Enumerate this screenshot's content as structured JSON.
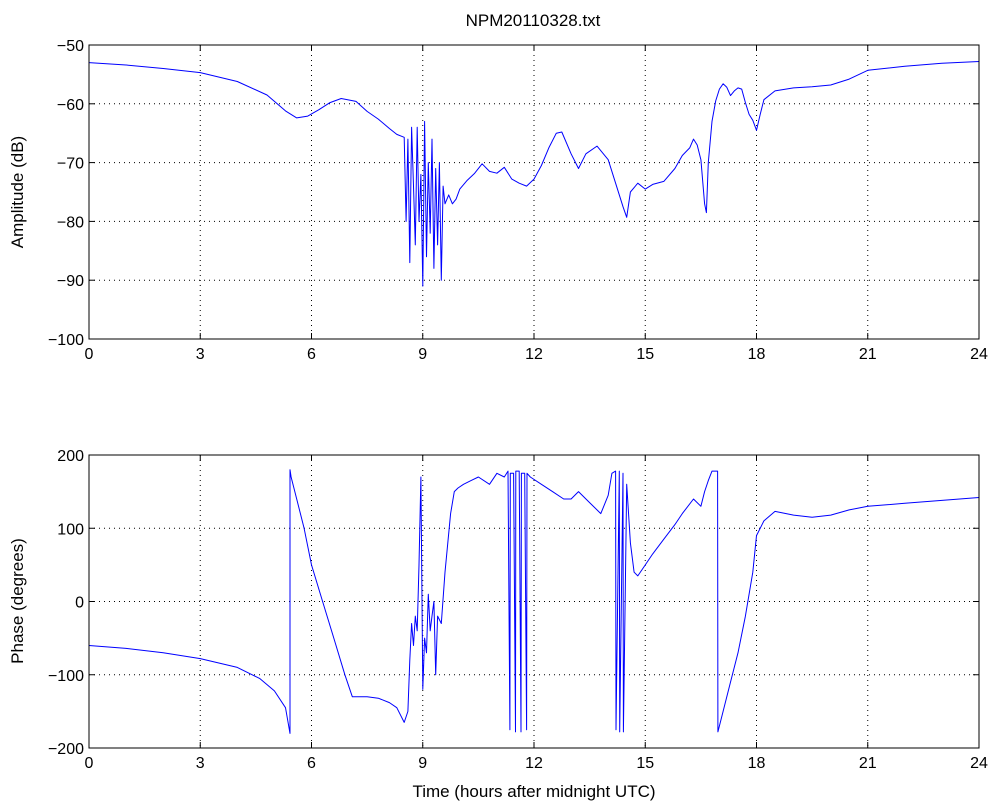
{
  "figure_title": "NPM20110328.txt",
  "chart_data": [
    {
      "type": "line",
      "title": "NPM20110328.txt",
      "xlabel": "",
      "ylabel": "Amplitude (dB)",
      "xlim": [
        0,
        24
      ],
      "ylim": [
        -100,
        -50
      ],
      "xticks": [
        0,
        3,
        6,
        9,
        12,
        15,
        18,
        21,
        24
      ],
      "xtick_labels": [
        "0",
        "3",
        "6",
        "9",
        "12",
        "15",
        "18",
        "21",
        "24"
      ],
      "yticks": [
        -100,
        -90,
        -80,
        -70,
        -60,
        -50
      ],
      "ytick_labels": [
        "−100",
        "−90",
        "−80",
        "−70",
        "−60",
        "−50"
      ],
      "grid": true,
      "color": "#0000ff",
      "series": [
        {
          "x": [
            0,
            1,
            2,
            3,
            4,
            4.8,
            5.3,
            5.6,
            5.9,
            6.2,
            6.5,
            6.8,
            7.2,
            7.5,
            7.8,
            8.1,
            8.3,
            8.5,
            8.55,
            8.6,
            8.65,
            8.7,
            8.75,
            8.8,
            8.85,
            8.9,
            8.95,
            9.0,
            9.05,
            9.1,
            9.15,
            9.2,
            9.25,
            9.3,
            9.35,
            9.4,
            9.45,
            9.5,
            9.55,
            9.6,
            9.7,
            9.8,
            9.9,
            10.0,
            10.2,
            10.4,
            10.6,
            10.8,
            11.0,
            11.2,
            11.4,
            11.6,
            11.8,
            12.0,
            12.2,
            12.4,
            12.6,
            12.75,
            13.0,
            13.2,
            13.4,
            13.7,
            14.0,
            14.2,
            14.4,
            14.5,
            14.6,
            14.8,
            15.0,
            15.2,
            15.5,
            15.8,
            16.0,
            16.2,
            16.3,
            16.4,
            16.5,
            16.6,
            16.65,
            16.7,
            16.8,
            16.9,
            17.0,
            17.1,
            17.2,
            17.3,
            17.4,
            17.5,
            17.6,
            17.7,
            17.8,
            17.9,
            18.0,
            18.1,
            18.2,
            18.5,
            19.0,
            19.5,
            20.0,
            20.5,
            21.0,
            22.0,
            23.0,
            24.0
          ],
          "y": [
            -53,
            -53.4,
            -54,
            -54.7,
            -56.2,
            -58.5,
            -61.2,
            -62.4,
            -62.1,
            -61.0,
            -59.8,
            -59.1,
            -59.6,
            -61.3,
            -62.6,
            -64.2,
            -65.2,
            -65.7,
            -80,
            -66,
            -87,
            -64,
            -74,
            -84,
            -64,
            -80,
            -72,
            -91,
            -63,
            -86,
            -70,
            -82,
            -66,
            -88,
            -71,
            -84,
            -70,
            -90,
            -74,
            -77,
            -75.5,
            -77,
            -76.2,
            -74.5,
            -73,
            -71.8,
            -70.2,
            -71.5,
            -71.8,
            -70.8,
            -72.8,
            -73.5,
            -74,
            -72.8,
            -70.5,
            -67.5,
            -65,
            -64.8,
            -68.5,
            -71,
            -68.5,
            -67.2,
            -69.5,
            -73.5,
            -77.5,
            -79.3,
            -75,
            -73.5,
            -74.5,
            -73.7,
            -73.2,
            -71,
            -68.8,
            -67.5,
            -66,
            -67,
            -69.5,
            -77,
            -78.5,
            -70,
            -63,
            -59.5,
            -57.5,
            -56.6,
            -57.2,
            -58.6,
            -57.8,
            -57.3,
            -57.5,
            -59.8,
            -61.8,
            -62.8,
            -64.5,
            -61.8,
            -59.3,
            -57.8,
            -57.3,
            -57.1,
            -56.8,
            -55.8,
            -54.3,
            -53.6,
            -53.1,
            -52.8
          ]
        }
      ]
    },
    {
      "type": "line",
      "title": "",
      "xlabel": "Time (hours after midnight UTC)",
      "ylabel": "Phase (degrees)",
      "xlim": [
        0,
        24
      ],
      "ylim": [
        -200,
        200
      ],
      "xticks": [
        0,
        3,
        6,
        9,
        12,
        15,
        18,
        21,
        24
      ],
      "xtick_labels": [
        "0",
        "3",
        "6",
        "9",
        "12",
        "15",
        "18",
        "21",
        "24"
      ],
      "yticks": [
        -200,
        -100,
        0,
        100,
        200
      ],
      "ytick_labels": [
        "−200",
        "−100",
        "0",
        "100",
        "200"
      ],
      "grid": true,
      "color": "#0000ff",
      "series": [
        {
          "x": [
            0,
            1,
            2,
            3,
            4,
            4.6,
            5.0,
            5.3,
            5.42,
            5.421,
            5.45,
            5.6,
            5.8,
            6.0,
            6.3,
            6.6,
            6.9,
            7.1,
            7.5,
            7.8,
            8.1,
            8.3,
            8.5,
            8.6,
            8.65,
            8.7,
            8.75,
            8.8,
            8.85,
            8.9,
            8.95,
            9.0,
            9.05,
            9.1,
            9.15,
            9.2,
            9.25,
            9.3,
            9.35,
            9.4,
            9.5,
            9.6,
            9.75,
            9.85,
            9.95,
            10.1,
            10.3,
            10.5,
            10.8,
            11.0,
            11.2,
            11.3,
            11.35,
            11.36,
            11.45,
            11.5,
            11.51,
            11.6,
            11.65,
            11.66,
            11.75,
            11.8,
            11.81,
            11.9,
            12.2,
            12.5,
            12.8,
            13.0,
            13.2,
            13.5,
            13.8,
            14.0,
            14.1,
            14.2,
            14.21,
            14.3,
            14.31,
            14.4,
            14.41,
            14.5,
            14.6,
            14.7,
            14.8,
            15.0,
            15.2,
            15.5,
            15.8,
            16.0,
            16.3,
            16.5,
            16.6,
            16.7,
            16.8,
            16.95,
            16.96,
            17.1,
            17.3,
            17.5,
            17.7,
            17.9,
            18.0,
            18.2,
            18.5,
            19.0,
            19.5,
            20.0,
            20.5,
            21.0,
            22.0,
            23.0,
            24.0
          ],
          "y": [
            -60,
            -64,
            -70,
            -78,
            -90,
            -105,
            -122,
            -145,
            -180,
            180,
            170,
            140,
            100,
            50,
            0,
            -50,
            -100,
            -130,
            -130,
            -132,
            -138,
            -145,
            -165,
            -150,
            -80,
            -30,
            -60,
            -20,
            -40,
            50,
            170,
            -120,
            -50,
            -70,
            10,
            -40,
            -20,
            0,
            -100,
            -20,
            -30,
            40,
            120,
            150,
            155,
            160,
            165,
            170,
            160,
            175,
            170,
            178,
            -175,
            175,
            175,
            -178,
            178,
            178,
            -178,
            175,
            175,
            -175,
            175,
            170,
            160,
            150,
            140,
            140,
            150,
            135,
            120,
            145,
            175,
            178,
            -175,
            178,
            -178,
            175,
            -178,
            160,
            80,
            40,
            35,
            50,
            65,
            85,
            105,
            120,
            140,
            130,
            150,
            165,
            178,
            178,
            -178,
            -150,
            -110,
            -70,
            -20,
            40,
            90,
            110,
            123,
            118,
            115,
            118,
            125,
            130,
            134,
            138,
            142
          ]
        }
      ]
    }
  ]
}
